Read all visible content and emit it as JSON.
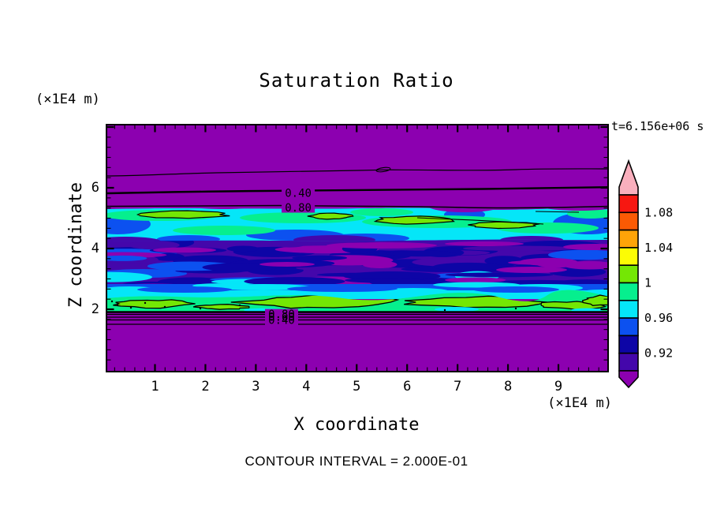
{
  "chart_data": {
    "type": "heatmap",
    "subtype": "filled_contour",
    "title": "Saturation Ratio",
    "time_annotation": "t=6.156e+06 s",
    "xlabel": "X coordinate",
    "ylabel": "Z coordinate",
    "x_unit": "(×1E4 m)",
    "z_unit": "(×1E4 m)",
    "xlim": [
      0,
      10
    ],
    "zlim": [
      0,
      8.2
    ],
    "x_ticks": [
      1,
      2,
      3,
      4,
      5,
      6,
      7,
      8,
      9
    ],
    "z_ticks": [
      6,
      4,
      2
    ],
    "x_minor_per_major": 5,
    "contour_interval": 0.2,
    "contour_interval_note": "CONTOUR INTERVAL = 2.000E-01",
    "contour_line_labels": [
      {
        "text": "0.40",
        "x": 3.84,
        "z": 5.82
      },
      {
        "text": "0.80",
        "x": 3.84,
        "z": 5.35
      },
      {
        "text": "0.80",
        "x": 3.51,
        "z": 1.84
      },
      {
        "text": "0.60",
        "x": 3.51,
        "z": 1.75
      },
      {
        "text": "0.40",
        "x": 3.51,
        "z": 1.65
      }
    ],
    "colorbar": {
      "tick_labels": [
        "1.08",
        "1.04",
        "1",
        "0.96",
        "0.92"
      ],
      "label_boundaries": [
        1,
        3,
        5,
        7,
        9
      ],
      "segment_colors_top_to_bottom": [
        "#F71711",
        "#FB5A04",
        "#FFA408",
        "#FCFC04",
        "#74E704",
        "#06EF8E",
        "#05E6F8",
        "#0C51F0",
        "#0D05A6",
        "#4407AB"
      ],
      "segment_values_top_to_bottom": [
        [
          1.08,
          1.1
        ],
        [
          1.06,
          1.08
        ],
        [
          1.04,
          1.06
        ],
        [
          1.02,
          1.04
        ],
        [
          1.0,
          1.02
        ],
        [
          0.98,
          1.0
        ],
        [
          0.96,
          0.98
        ],
        [
          0.94,
          0.96
        ],
        [
          0.92,
          0.94
        ],
        [
          0.9,
          0.92
        ]
      ],
      "over_arrow_color": "#F9AFBD",
      "under_arrow_color": "#8C00B0"
    },
    "field_layers": [
      {
        "z_range": [
          5.45,
          8.2
        ],
        "description": "uniform low saturation background",
        "color": "#8C00B0"
      },
      {
        "z_range": [
          4.3,
          5.45
        ],
        "description": "supersaturated cloud band with cyan, spring-green and green patches",
        "colors": [
          "#05E6F8",
          "#06EF8E",
          "#74E704",
          "#0C51F0"
        ]
      },
      {
        "z_range": [
          2.6,
          4.3
        ],
        "description": "mottled sub-saturated layer of dark violet, navy and blue streaks",
        "colors": [
          "#4407AB",
          "#0D05A6",
          "#0C51F0",
          "#8C00B0",
          "#05E6F8"
        ]
      },
      {
        "z_range": [
          1.95,
          2.6
        ],
        "description": "lower supersaturated cloud band, spring green with green blobs",
        "colors": [
          "#06EF8E",
          "#74E704",
          "#05E6F8"
        ]
      },
      {
        "z_range": [
          0,
          1.95
        ],
        "description": "uniform low saturation background",
        "color": "#8C00B0"
      }
    ]
  }
}
